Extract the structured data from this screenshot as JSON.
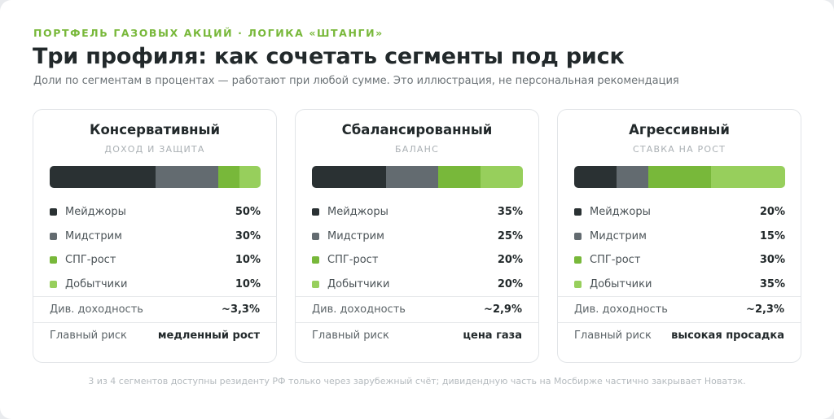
{
  "header": {
    "kicker": "ПОРТФЕЛЬ ГАЗОВЫХ АКЦИЙ · ЛОГИКА «ШТАНГИ»",
    "title": "Три профиля: как сочетать сегменты под риск",
    "subtitle": "Доли по сегментам в процентах — работают при любой сумме. Это иллюстрация, не персональная рекомендация"
  },
  "colors": {
    "majors": "#2a3133",
    "midstream": "#636b70",
    "lng": "#78b83a",
    "producers": "#97cf5c"
  },
  "profiles": [
    {
      "title": "Консервативный",
      "subtitle": "ДОХОД И ЗАЩИТА",
      "segments": [
        {
          "label": "Мейджоры",
          "value": 50,
          "value_text": "50%",
          "color": "#2a3133"
        },
        {
          "label": "Мидстрим",
          "value": 30,
          "value_text": "30%",
          "color": "#636b70"
        },
        {
          "label": "СПГ-рост",
          "value": 10,
          "value_text": "10%",
          "color": "#78b83a"
        },
        {
          "label": "Добытчики",
          "value": 10,
          "value_text": "10%",
          "color": "#97cf5c"
        }
      ],
      "yield_label": "Див. доходность",
      "yield_value": "~3,3%",
      "risk_label": "Главный риск",
      "risk_value": "медленный рост"
    },
    {
      "title": "Сбалансированный",
      "subtitle": "БАЛАНС",
      "segments": [
        {
          "label": "Мейджоры",
          "value": 35,
          "value_text": "35%",
          "color": "#2a3133"
        },
        {
          "label": "Мидстрим",
          "value": 25,
          "value_text": "25%",
          "color": "#636b70"
        },
        {
          "label": "СПГ-рост",
          "value": 20,
          "value_text": "20%",
          "color": "#78b83a"
        },
        {
          "label": "Добытчики",
          "value": 20,
          "value_text": "20%",
          "color": "#97cf5c"
        }
      ],
      "yield_label": "Див. доходность",
      "yield_value": "~2,9%",
      "risk_label": "Главный риск",
      "risk_value": "цена газа"
    },
    {
      "title": "Агрессивный",
      "subtitle": "СТАВКА НА РОСТ",
      "segments": [
        {
          "label": "Мейджоры",
          "value": 20,
          "value_text": "20%",
          "color": "#2a3133"
        },
        {
          "label": "Мидстрим",
          "value": 15,
          "value_text": "15%",
          "color": "#636b70"
        },
        {
          "label": "СПГ-рост",
          "value": 30,
          "value_text": "30%",
          "color": "#78b83a"
        },
        {
          "label": "Добытчики",
          "value": 35,
          "value_text": "35%",
          "color": "#97cf5c"
        }
      ],
      "yield_label": "Див. доходность",
      "yield_value": "~2,3%",
      "risk_label": "Главный риск",
      "risk_value": "высокая просадка"
    }
  ],
  "footnote": "3 из 4 сегментов доступны резиденту РФ только через зарубежный счёт; дивидендную часть на Мосбирже частично закрывает Новатэк."
}
